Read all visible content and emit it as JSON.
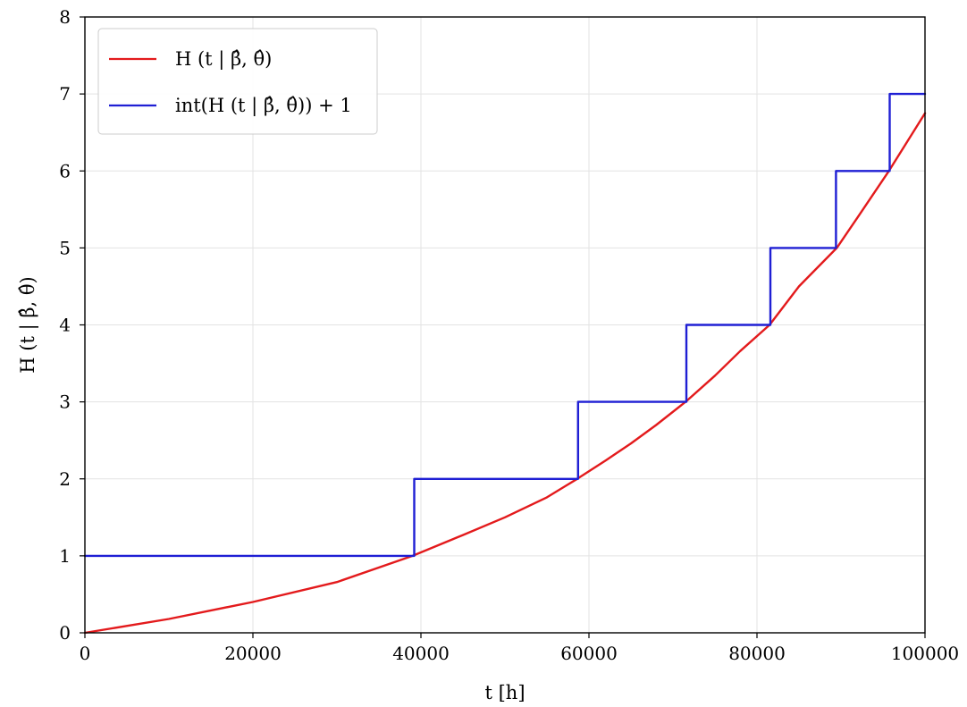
{
  "chart_data": {
    "type": "line",
    "xlabel": "t [h]",
    "ylabel": "H (t | β̂, θ̂)",
    "xlim": [
      0,
      100000
    ],
    "ylim": [
      0,
      8
    ],
    "xticks": [
      "0",
      "20000",
      "40000",
      "60000",
      "80000",
      "100000"
    ],
    "yticks": [
      "0",
      "1",
      "2",
      "3",
      "4",
      "5",
      "6",
      "7",
      "8"
    ],
    "grid": true,
    "legend_position": "top-left",
    "series": [
      {
        "name": "H (t | β̂, θ̂)",
        "style": "line",
        "color": "#e31a1c",
        "x": [
          0,
          10000,
          20000,
          30000,
          39000,
          45000,
          50000,
          55000,
          58600,
          62000,
          65000,
          68000,
          71500,
          75000,
          78000,
          81500,
          85000,
          89500,
          92000,
          95700,
          98000,
          100000
        ],
        "y": [
          0,
          0.18,
          0.4,
          0.66,
          1.0,
          1.27,
          1.5,
          1.76,
          2.0,
          2.24,
          2.46,
          2.7,
          3.0,
          3.34,
          3.66,
          4.0,
          4.5,
          5.0,
          5.4,
          6.0,
          6.4,
          6.75
        ]
      },
      {
        "name": "int(H (t | β̂, θ̂)) + 1",
        "style": "step",
        "color": "#1f1fd4",
        "x": [
          0,
          39200,
          39200,
          58700,
          58700,
          71600,
          71600,
          81600,
          81600,
          89400,
          89400,
          95800,
          95800,
          100000
        ],
        "y": [
          1,
          1,
          2,
          2,
          3,
          3,
          4,
          4,
          5,
          5,
          6,
          6,
          7,
          7
        ]
      }
    ]
  }
}
